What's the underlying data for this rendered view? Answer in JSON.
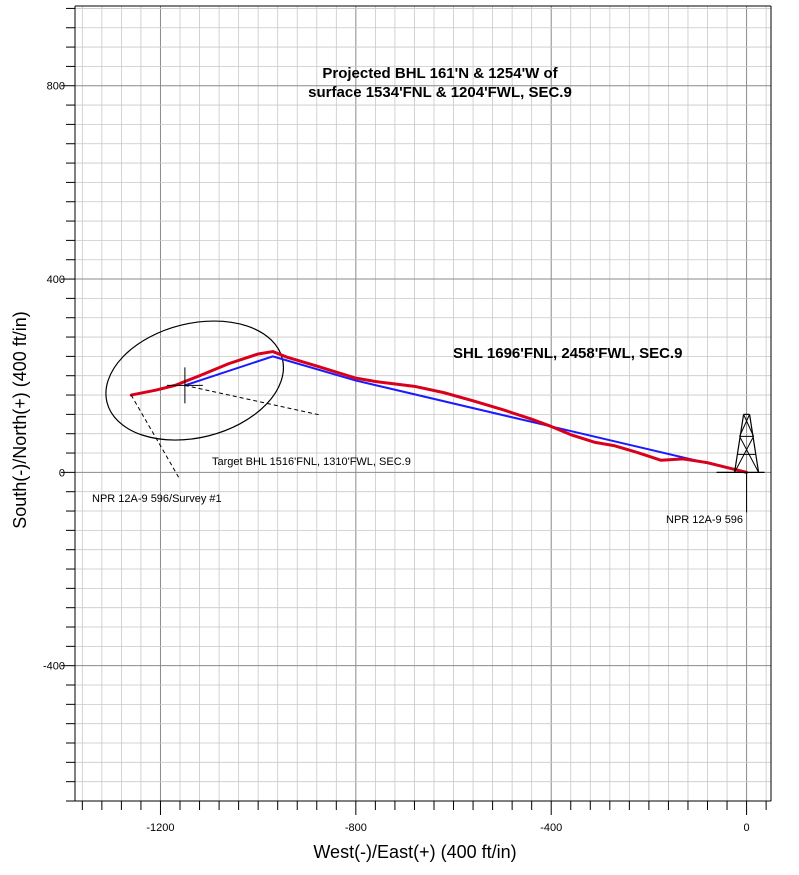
{
  "chart_data": {
    "type": "line",
    "title_line1": "Projected BHL 161'N & 1254'W of",
    "title_line2": "surface 1534'FNL & 1204'FWL, SEC.9",
    "xlabel": "West(-)/East(+) (400 ft/in)",
    "ylabel": "South(-)/North(+) (400 ft/in)",
    "xlim": [
      -1375,
      50
    ],
    "ylim": [
      -680,
      965
    ],
    "x_ticks": [
      -1200,
      -800,
      -400,
      0
    ],
    "y_ticks": [
      800,
      400,
      0,
      -400
    ],
    "x_tick_labels": [
      "-1200",
      "-800",
      "-400",
      "0"
    ],
    "y_tick_labels": [
      "800",
      "400",
      "0",
      "-400"
    ],
    "grid": true,
    "series": [
      {
        "color": "#d9001b",
        "x": [
          0,
          -40,
          -80,
          -130,
          -175,
          -220,
          -270,
          -310,
          -360,
          -400,
          -440,
          -500,
          -560,
          -620,
          -680,
          -760,
          -800,
          -880,
          -940,
          -970,
          -1000,
          -1060,
          -1120,
          -1170,
          -1210,
          -1260
        ],
        "y": [
          0,
          10,
          20,
          28,
          25,
          40,
          55,
          62,
          78,
          95,
          110,
          130,
          148,
          165,
          178,
          188,
          195,
          220,
          238,
          250,
          245,
          225,
          200,
          180,
          170,
          160
        ]
      },
      {
        "color": "#1a1aff",
        "x": [
          0,
          -400,
          -800,
          -970,
          -1150
        ],
        "y": [
          0,
          95,
          190,
          240,
          180
        ]
      }
    ],
    "annotations": {
      "shl": "SHL 1696'FNL, 2458'FWL, SEC.9",
      "target": "Target BHL 1516'FNL, 1310'FWL, SEC.9",
      "survey": "NPR 12A-9 596/Survey #1",
      "rig": "NPR 12A-9 596"
    },
    "target_point": {
      "x": -1150,
      "y": 180
    },
    "target_ellipse": {
      "cx": -1130,
      "cy": 190,
      "rx": 185,
      "ry": 118
    }
  }
}
